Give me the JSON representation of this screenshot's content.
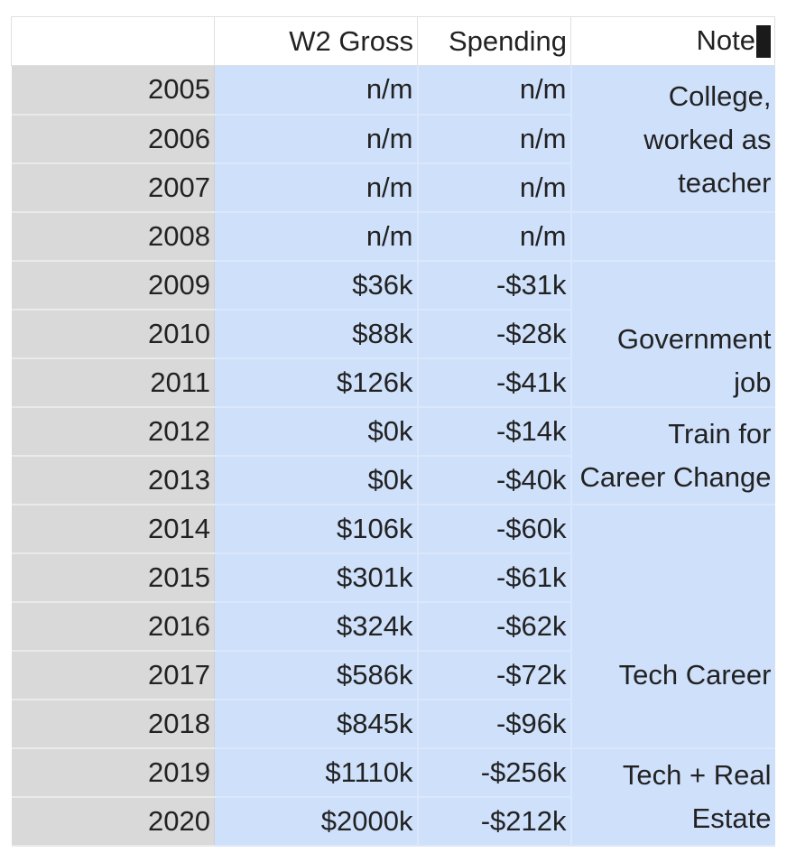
{
  "sheet": {
    "headers": {
      "year": "",
      "w2": "W2 Gross",
      "spending": "Spending",
      "note": "Note"
    },
    "rows": [
      {
        "year": "2005",
        "w2": "n/m",
        "spending": "n/m"
      },
      {
        "year": "2006",
        "w2": "n/m",
        "spending": "n/m"
      },
      {
        "year": "2007",
        "w2": "n/m",
        "spending": "n/m"
      },
      {
        "year": "2008",
        "w2": "n/m",
        "spending": "n/m"
      },
      {
        "year": "2009",
        "w2": "$36k",
        "spending": "-$31k"
      },
      {
        "year": "2010",
        "w2": "$88k",
        "spending": "-$28k"
      },
      {
        "year": "2011",
        "w2": "$126k",
        "spending": "-$41k"
      },
      {
        "year": "2012",
        "w2": "$0k",
        "spending": "-$14k"
      },
      {
        "year": "2013",
        "w2": "$0k",
        "spending": "-$40k"
      },
      {
        "year": "2014",
        "w2": "$106k",
        "spending": "-$60k"
      },
      {
        "year": "2015",
        "w2": "$301k",
        "spending": "-$61k"
      },
      {
        "year": "2016",
        "w2": "$324k",
        "spending": "-$62k"
      },
      {
        "year": "2017",
        "w2": "$586k",
        "spending": "-$72k"
      },
      {
        "year": "2018",
        "w2": "$845k",
        "spending": "-$96k"
      },
      {
        "year": "2019",
        "w2": "$1110k",
        "spending": "-$256k"
      },
      {
        "year": "2020",
        "w2": "$2000k",
        "spending": "-$212k"
      }
    ],
    "notes": {
      "college": [
        "College,",
        "worked as",
        "teacher"
      ],
      "government": [
        "Government",
        "job"
      ],
      "train": [
        "Train for",
        "Career Change"
      ],
      "tech": "Tech Career",
      "real_estate": [
        "Tech + Real",
        "Estate"
      ]
    }
  }
}
